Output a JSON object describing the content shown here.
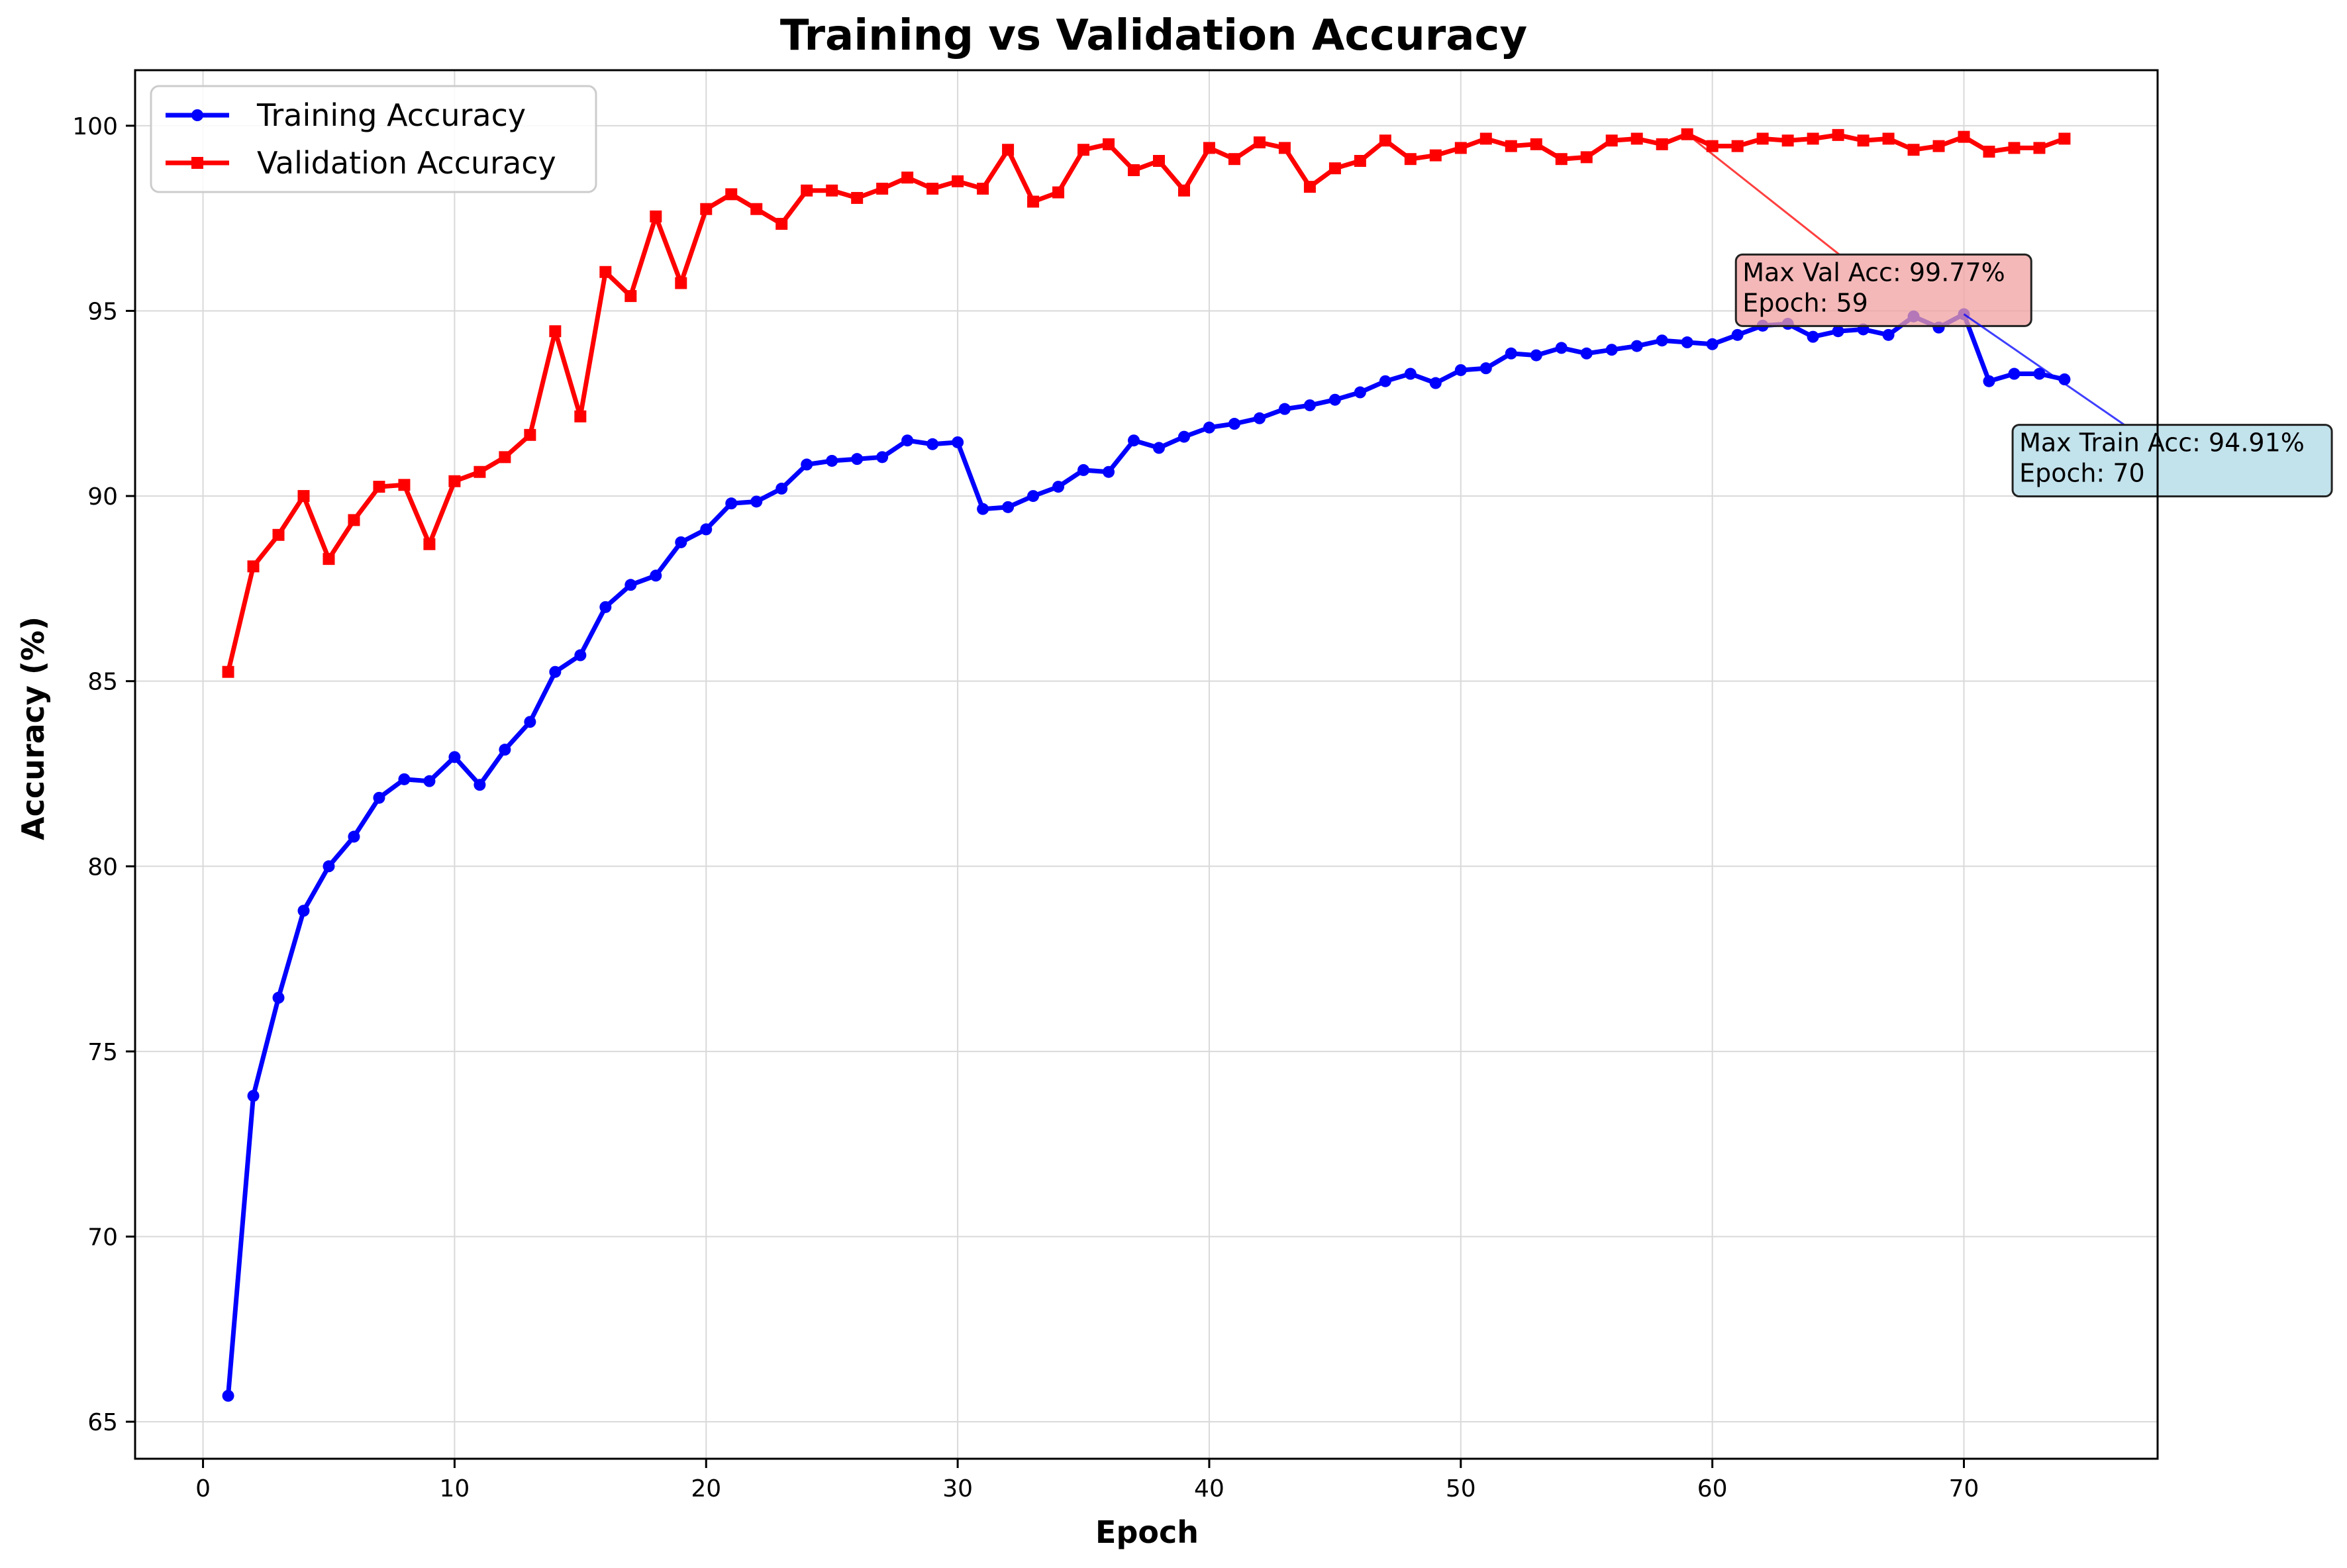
{
  "chart_data": {
    "type": "line",
    "title": "Training vs Validation Accuracy",
    "xlabel": "Epoch",
    "ylabel": "Accuracy (%)",
    "xlim": [
      -2.7,
      77.7
    ],
    "ylim": [
      64.0,
      101.5
    ],
    "xticks": [
      0,
      10,
      20,
      30,
      40,
      50,
      60,
      70
    ],
    "yticks": [
      65,
      70,
      75,
      80,
      85,
      90,
      95,
      100
    ],
    "grid": true,
    "legend_position": "top-left",
    "x": [
      1,
      2,
      3,
      4,
      5,
      6,
      7,
      8,
      9,
      10,
      11,
      12,
      13,
      14,
      15,
      16,
      17,
      18,
      19,
      20,
      21,
      22,
      23,
      24,
      25,
      26,
      27,
      28,
      29,
      30,
      31,
      32,
      33,
      34,
      35,
      36,
      37,
      38,
      39,
      40,
      41,
      42,
      43,
      44,
      45,
      46,
      47,
      48,
      49,
      50,
      51,
      52,
      53,
      54,
      55,
      56,
      57,
      58,
      59,
      60,
      61,
      62,
      63,
      64,
      65,
      66,
      67,
      68,
      69,
      70,
      71,
      72,
      73,
      74
    ],
    "series": [
      {
        "name": "Training Accuracy",
        "color": "#0000ff",
        "marker": "circle",
        "values": [
          65.7,
          73.8,
          76.45,
          78.8,
          80.0,
          80.8,
          81.85,
          82.35,
          82.3,
          82.95,
          82.2,
          83.15,
          83.9,
          85.25,
          85.7,
          87.0,
          87.6,
          87.85,
          88.75,
          89.1,
          89.8,
          89.85,
          90.2,
          90.85,
          90.95,
          91.0,
          91.05,
          91.5,
          91.4,
          91.45,
          89.65,
          89.7,
          90.0,
          90.25,
          90.7,
          90.65,
          91.5,
          91.3,
          91.6,
          91.85,
          91.95,
          92.1,
          92.35,
          92.45,
          92.6,
          92.8,
          93.1,
          93.3,
          93.05,
          93.4,
          93.45,
          93.85,
          93.8,
          94.0,
          93.85,
          93.95,
          94.05,
          94.2,
          94.15,
          94.1,
          94.35,
          94.6,
          94.65,
          94.3,
          94.45,
          94.5,
          94.35,
          94.85,
          94.55,
          94.91,
          93.1,
          93.3,
          93.3,
          93.15
        ]
      },
      {
        "name": "Validation Accuracy",
        "color": "#ff0000",
        "marker": "square",
        "values": [
          85.25,
          88.1,
          88.95,
          90.0,
          88.3,
          89.35,
          90.25,
          90.3,
          88.7,
          90.4,
          90.65,
          91.05,
          91.65,
          94.45,
          92.15,
          96.05,
          95.4,
          97.55,
          95.75,
          97.75,
          98.15,
          97.75,
          97.35,
          98.25,
          98.25,
          98.05,
          98.3,
          98.6,
          98.3,
          98.5,
          98.3,
          99.35,
          97.95,
          98.2,
          99.35,
          99.5,
          98.8,
          99.05,
          98.25,
          99.4,
          99.1,
          99.55,
          99.4,
          98.35,
          98.85,
          99.05,
          99.6,
          99.1,
          99.2,
          99.4,
          99.65,
          99.45,
          99.5,
          99.1,
          99.15,
          99.6,
          99.65,
          99.5,
          99.77,
          99.45,
          99.45,
          99.65,
          99.6,
          99.65,
          99.75,
          99.6,
          99.65,
          99.35,
          99.45,
          99.7,
          99.3,
          99.4,
          99.4,
          99.65
        ]
      }
    ],
    "annotations": [
      {
        "lines": [
          "Max Val Acc: 99.77%",
          "Epoch: 59"
        ],
        "point": [
          59,
          99.77
        ],
        "text_anchor": [
          61.2,
          95.7
        ],
        "color": "#ff0000",
        "box_color": "#f0a0a0"
      },
      {
        "lines": [
          "Max Train Acc: 94.91%",
          "Epoch: 70"
        ],
        "point": [
          70,
          94.91
        ],
        "text_anchor": [
          72.2,
          91.1
        ],
        "color": "#0000ff",
        "box_color": "#add8e6"
      }
    ]
  }
}
